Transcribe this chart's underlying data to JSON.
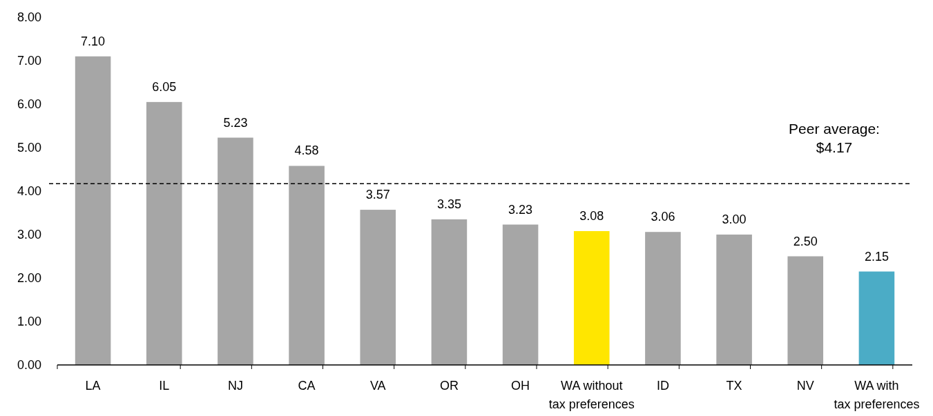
{
  "chart_data": {
    "type": "bar",
    "categories": [
      "LA",
      "IL",
      "NJ",
      "CA",
      "VA",
      "OR",
      "OH",
      "WA without\ntax preferences",
      "ID",
      "TX",
      "NV",
      "WA with\ntax preferences"
    ],
    "values": [
      7.1,
      6.05,
      5.23,
      4.58,
      3.57,
      3.35,
      3.23,
      3.08,
      3.06,
      3.0,
      2.5,
      2.15
    ],
    "colors": [
      "#a6a6a6",
      "#a6a6a6",
      "#a6a6a6",
      "#a6a6a6",
      "#a6a6a6",
      "#a6a6a6",
      "#a6a6a6",
      "#ffe600",
      "#a6a6a6",
      "#a6a6a6",
      "#a6a6a6",
      "#4bacc6"
    ],
    "value_labels": [
      "7.10",
      "6.05",
      "5.23",
      "4.58",
      "3.57",
      "3.35",
      "3.23",
      "3.08",
      "3.06",
      "3.00",
      "2.50",
      "2.15"
    ],
    "ylim": [
      0,
      8
    ],
    "yticks": [
      {
        "value": 0,
        "label": "0.00"
      },
      {
        "value": 1,
        "label": "1.00"
      },
      {
        "value": 2,
        "label": "2.00"
      },
      {
        "value": 3,
        "label": "3.00"
      },
      {
        "value": 4,
        "label": "4.00"
      },
      {
        "value": 5,
        "label": "5.00"
      },
      {
        "value": 6,
        "label": "6.00"
      },
      {
        "value": 7,
        "label": "7.00"
      },
      {
        "value": 8,
        "label": "8.00"
      }
    ],
    "ref_lines": [
      {
        "axis": "y",
        "value": 4.17,
        "label": "Peer average:\n$4.17",
        "color": "#000000",
        "line_style": "dashed"
      }
    ],
    "grid": false
  }
}
